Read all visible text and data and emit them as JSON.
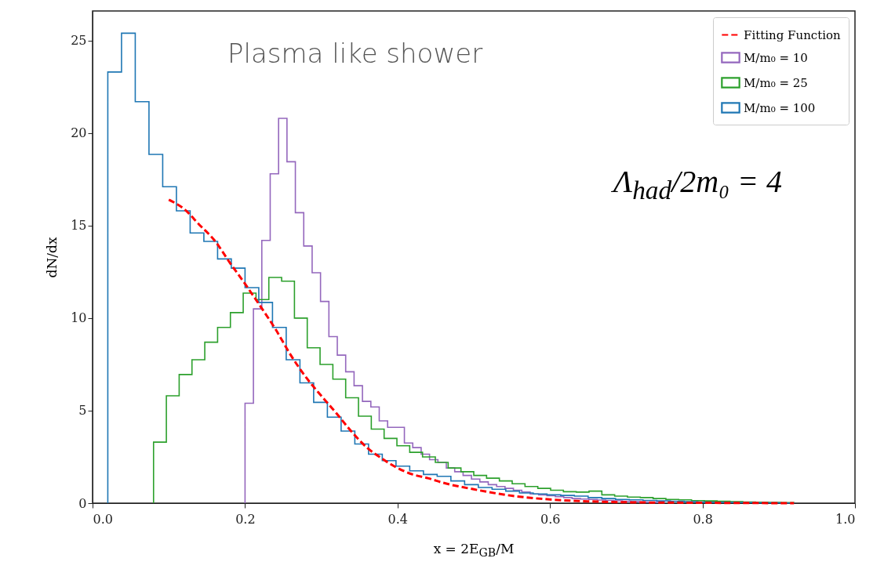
{
  "chart_data": {
    "type": "histogram",
    "xlabel": "x = 2E$_{GB}$/M",
    "ylabel": "dN/dx",
    "annotations": [
      "Plasma like shower",
      "Λ$_{had}$/2m₀ = 4"
    ],
    "xlim": [
      0,
      1
    ],
    "ylim": [
      0,
      26.6
    ],
    "xticks": [
      {
        "value": 0,
        "label": "0.0"
      },
      {
        "value": 0.2,
        "label": "0.2"
      },
      {
        "value": 0.4,
        "label": "0.4"
      },
      {
        "value": 0.6,
        "label": "0.6"
      },
      {
        "value": 0.8,
        "label": "0.8"
      },
      {
        "value": 1,
        "label": "1.0"
      }
    ],
    "yticks": [
      0,
      5,
      10,
      15,
      20,
      25
    ],
    "legend": "top right",
    "series": [
      {
        "name": "Fitting Function",
        "type": "line",
        "line_style": "dashed",
        "color": "#ff0000",
        "x": [
          0.1,
          0.12,
          0.14,
          0.16,
          0.18,
          0.2,
          0.22,
          0.24,
          0.26,
          0.28,
          0.3,
          0.32,
          0.34,
          0.36,
          0.38,
          0.4,
          0.42,
          0.44,
          0.46,
          0.5,
          0.55,
          0.6,
          0.65,
          0.7,
          0.8,
          0.92
        ],
        "values": [
          16.4,
          15.9,
          15.05,
          14.2,
          13.0,
          11.85,
          10.65,
          9.4,
          8.0,
          6.8,
          5.8,
          4.85,
          3.85,
          3.0,
          2.4,
          1.9,
          1.55,
          1.35,
          1.1,
          0.75,
          0.4,
          0.2,
          0.1,
          0.05,
          0.02,
          0.0
        ]
      },
      {
        "name": "M/m₀ = 10",
        "color": "#9467bd",
        "bins": [
          0.2,
          0.211,
          0.222,
          0.233,
          0.244,
          0.255,
          0.266,
          0.277,
          0.288,
          0.299,
          0.31,
          0.321,
          0.332,
          0.343,
          0.354,
          0.365,
          0.376,
          0.387,
          0.398,
          0.409,
          0.42,
          0.431,
          0.442,
          0.453,
          0.464,
          0.475,
          0.486,
          0.497,
          0.508,
          0.519,
          0.53,
          0.541,
          0.552,
          0.563,
          0.574,
          0.585,
          0.596,
          0.607,
          0.618,
          0.629,
          0.64,
          0.651,
          0.662,
          0.673,
          0.684,
          0.695,
          0.706,
          0.717,
          0.728,
          0.739,
          0.75
        ],
        "values": [
          5.4,
          10.5,
          14.2,
          17.8,
          20.8,
          18.45,
          15.7,
          13.9,
          12.45,
          10.9,
          9.0,
          8.0,
          7.1,
          6.35,
          5.5,
          5.2,
          4.45,
          4.1,
          4.1,
          3.25,
          3.0,
          2.65,
          2.35,
          2.2,
          1.9,
          1.7,
          1.5,
          1.3,
          1.15,
          1.0,
          0.9,
          0.8,
          0.7,
          0.6,
          0.5,
          0.45,
          0.4,
          0.35,
          0.3,
          0.25,
          0.22,
          0.2,
          0.17,
          0.15,
          0.13,
          0.1,
          0.08,
          0.06,
          0.05,
          0.04
        ]
      },
      {
        "name": "M/m₀ = 25",
        "color": "#2ca02c",
        "bins": [
          0.08,
          0.0968,
          0.1136,
          0.1304,
          0.1472,
          0.164,
          0.1808,
          0.1976,
          0.2144,
          0.2312,
          0.248,
          0.2648,
          0.2816,
          0.2984,
          0.3152,
          0.332,
          0.3488,
          0.3656,
          0.3824,
          0.3992,
          0.416,
          0.4328,
          0.4496,
          0.4664,
          0.4832,
          0.5,
          0.5168,
          0.5336,
          0.5504,
          0.5672,
          0.584,
          0.6008,
          0.6176,
          0.6344,
          0.6512,
          0.668,
          0.6848,
          0.7016,
          0.7184,
          0.7352,
          0.752,
          0.7688,
          0.7856,
          0.8024,
          0.8192,
          0.836,
          0.8528,
          0.8696,
          0.8864,
          0.9032,
          0.92
        ],
        "values": [
          3.3,
          5.8,
          6.95,
          7.75,
          8.7,
          9.5,
          10.3,
          11.35,
          11.0,
          12.2,
          12.0,
          10.0,
          8.4,
          7.5,
          6.7,
          5.7,
          4.7,
          4.0,
          3.5,
          3.1,
          2.75,
          2.5,
          2.2,
          1.9,
          1.7,
          1.5,
          1.35,
          1.2,
          1.05,
          0.9,
          0.8,
          0.7,
          0.62,
          0.6,
          0.65,
          0.45,
          0.38,
          0.33,
          0.3,
          0.25,
          0.2,
          0.18,
          0.14,
          0.12,
          0.1,
          0.08,
          0.06,
          0.05,
          0.04,
          0.03
        ]
      },
      {
        "name": "M/m₀ = 100",
        "color": "#1f77b4",
        "bins": [
          0.02,
          0.038,
          0.056,
          0.074,
          0.092,
          0.11,
          0.128,
          0.146,
          0.164,
          0.182,
          0.2,
          0.218,
          0.236,
          0.254,
          0.272,
          0.29,
          0.308,
          0.326,
          0.344,
          0.362,
          0.38,
          0.398,
          0.416,
          0.434,
          0.452,
          0.47,
          0.488,
          0.506,
          0.524,
          0.542,
          0.56,
          0.578,
          0.596,
          0.614,
          0.632,
          0.65,
          0.668,
          0.686,
          0.704,
          0.722,
          0.74,
          0.758,
          0.776,
          0.794,
          0.812,
          0.83,
          0.848,
          0.866,
          0.884,
          0.902,
          0.92
        ],
        "values": [
          23.3,
          25.4,
          21.7,
          18.85,
          17.1,
          15.8,
          14.6,
          14.15,
          13.2,
          12.7,
          11.65,
          10.85,
          9.5,
          7.75,
          6.5,
          5.45,
          4.65,
          3.9,
          3.2,
          2.65,
          2.3,
          2.0,
          1.75,
          1.55,
          1.45,
          1.2,
          1.0,
          0.85,
          0.75,
          0.65,
          0.55,
          0.5,
          0.45,
          0.42,
          0.38,
          0.3,
          0.25,
          0.2,
          0.18,
          0.15,
          0.12,
          0.1,
          0.08,
          0.06,
          0.05,
          0.04,
          0.03,
          0.02,
          0.02,
          0.01
        ]
      }
    ]
  }
}
